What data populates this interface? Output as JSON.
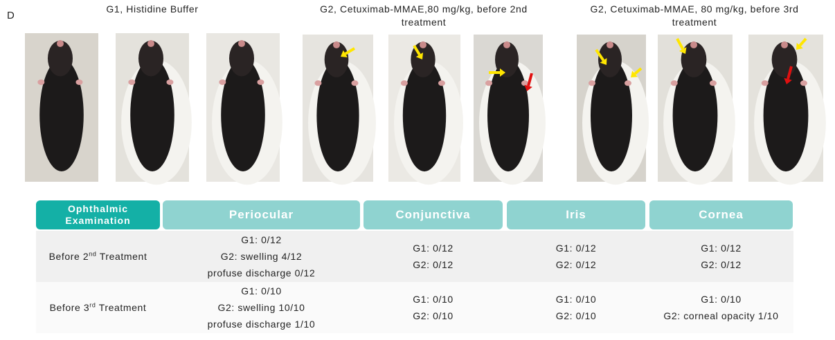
{
  "panel_label": "D",
  "groups": [
    {
      "title": [
        "G1, Histidine Buffer"
      ]
    },
    {
      "title": [
        "G2, Cetuximab-MMAE,80 mg/kg, before 2nd",
        "treatment"
      ]
    },
    {
      "title": [
        "G2, Cetuximab-MMAE, 80 mg/kg, before 3rd",
        "treatment"
      ]
    }
  ],
  "table": {
    "header": [
      "Ophthalmic Examination",
      "Periocular",
      "Conjunctiva",
      "Iris",
      "Cornea"
    ],
    "rows": [
      {
        "label": {
          "text": "Before 2",
          "sup": "nd",
          "tail": " Treatment"
        },
        "cells": [
          [
            "G1: 0/12",
            "G2: swelling 4/12",
            "profuse discharge 0/12"
          ],
          [
            "G1: 0/12",
            "G2: 0/12"
          ],
          [
            "G1: 0/12",
            "G2: 0/12"
          ],
          [
            "G1: 0/12",
            "G2: 0/12"
          ]
        ]
      },
      {
        "label": {
          "text": "Before 3",
          "sup": "rd",
          "tail": " Treatment"
        },
        "cells": [
          [
            "G1: 0/10",
            "G2: swelling 10/10",
            "profuse discharge 1/10"
          ],
          [
            "G1: 0/10",
            "G2: 0/10"
          ],
          [
            "G1: 0/10",
            "G2: 0/10"
          ],
          [
            "G1: 0/10",
            "G2: corneal opacity 1/10"
          ]
        ]
      }
    ]
  }
}
